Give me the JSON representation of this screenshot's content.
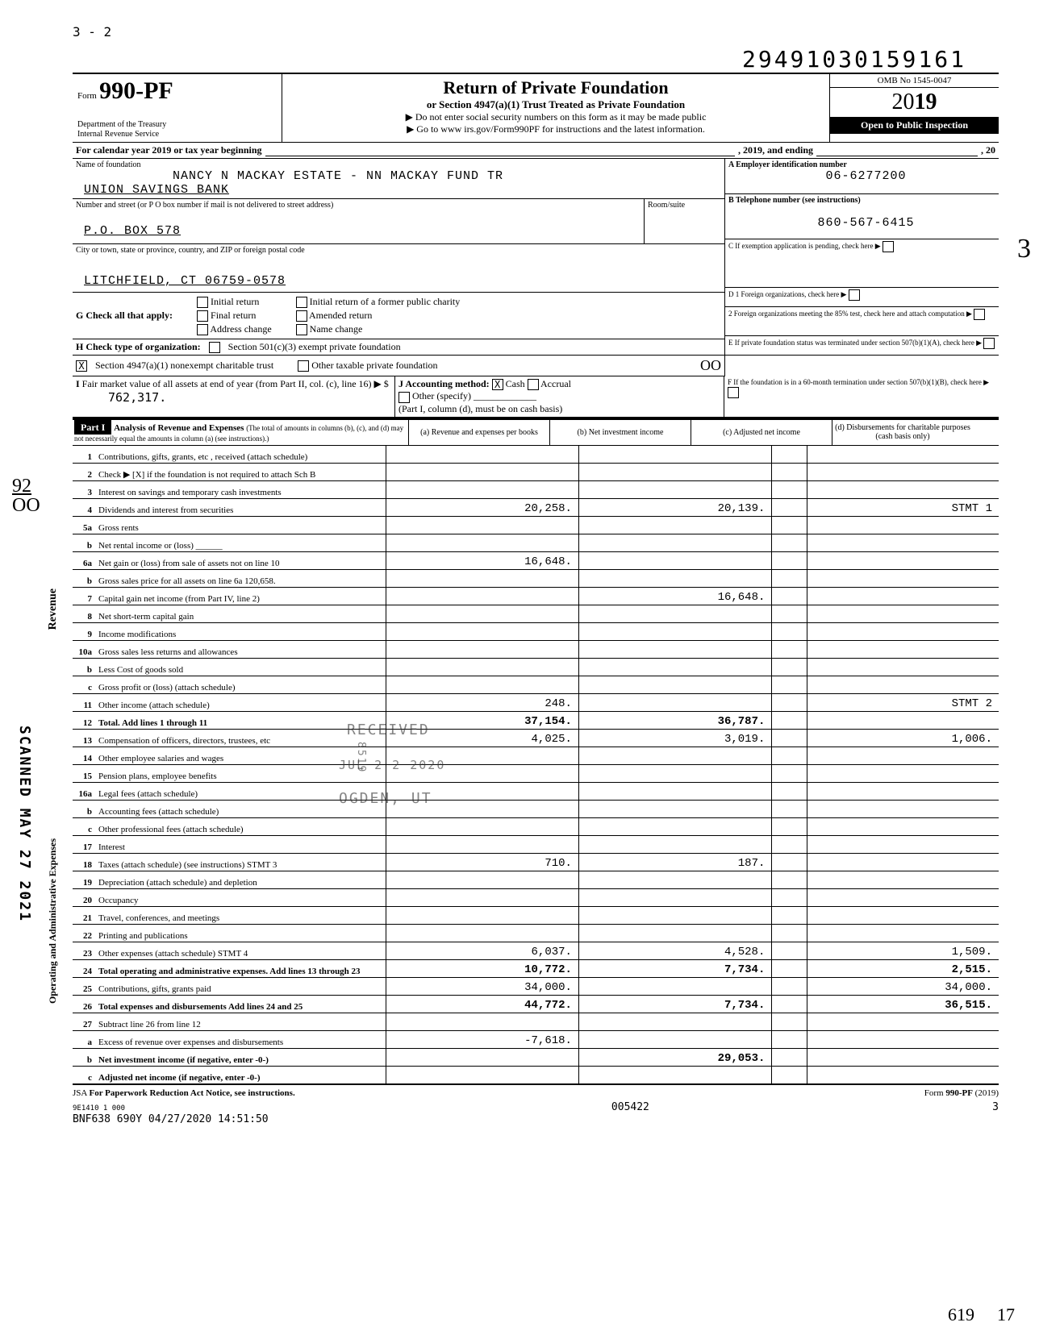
{
  "top_left_mark": "3 - 2",
  "doc_id": "29491030159161",
  "form": {
    "prefix": "Form",
    "number": "990-PF",
    "title": "Return of Private Foundation",
    "subtitle": "or Section 4947(a)(1) Trust Treated as Private Foundation",
    "warn": "▶ Do not enter social security numbers on this form as it may be made public",
    "goto": "▶ Go to www irs.gov/Form990PF for instructions and the latest information.",
    "dept1": "Department of the Treasury",
    "dept2": "Internal Revenue Service",
    "omb": "OMB No 1545-0047",
    "year": "2019",
    "inspect": "Open to Public Inspection"
  },
  "cal_line": "For calendar year 2019 or tax year beginning",
  "cal_mid": ", 2019, and ending",
  "cal_end": ", 20",
  "name_label": "Name of foundation",
  "name_value": "NANCY N MACKAY ESTATE - NN MACKAY FUND TR",
  "name_value2": "UNION SAVINGS BANK",
  "street_label": "Number and street (or P O box number if mail is not delivered to street address)",
  "room_label": "Room/suite",
  "street_value": "P.O. BOX 578",
  "city_label": "City or town, state or province, country, and ZIP or foreign postal code",
  "city_value": "LITCHFIELD, CT 06759-0578",
  "ein_label": "A  Employer identification number",
  "ein_value": "06-6277200",
  "phone_label": "B  Telephone number (see instructions)",
  "phone_value": "860-567-6415",
  "c_label": "C  If exemption application is pending, check here",
  "d1": "D  1 Foreign organizations, check here",
  "d2": "2 Foreign organizations meeting the 85% test, check here and attach computation",
  "e_label": "E  If private foundation status was terminated under section 507(b)(1)(A), check here",
  "f_label": "F  If the foundation is in a 60-month termination under section 507(b)(1)(B), check here",
  "g_label": "G Check all that apply:",
  "g_opts": [
    "Initial return",
    "Final return",
    "Address change",
    "Initial return of a former public charity",
    "Amended return",
    "Name change"
  ],
  "h_label": "H Check type of organization:",
  "h1": "Section 501(c)(3) exempt private foundation",
  "h2": "Section 4947(a)(1) nonexempt charitable trust",
  "h3": "Other taxable private foundation",
  "h_mark": "X",
  "h_oo": "OO",
  "i_label": "I  Fair market value of all assets at end of year (from Part II, col. (c), line 16) ▶ $",
  "i_value": "762,317.",
  "j_label": "J Accounting method:",
  "j_cash": "Cash",
  "j_accrual": "Accrual",
  "j_other": "Other (specify)",
  "j_note": "(Part I, column (d), must be on cash basis)",
  "j_mark": "X",
  "part1_label": "Part I",
  "part1_title": "Analysis of Revenue and Expenses",
  "part1_sub": "(The total of amounts in columns (b), (c), and (d) may not necessarily equal the amounts in column (a) (see instructions).)",
  "col_a": "(a) Revenue and expenses per books",
  "col_b": "(b) Net investment income",
  "col_c": "(c) Adjusted net income",
  "col_d": "(d) Disbursements for charitable purposes (cash basis only)",
  "rows": [
    {
      "n": "1",
      "d": "Contributions, gifts, grants, etc , received (attach schedule)"
    },
    {
      "n": "2",
      "d": "Check ▶  [X]  if the foundation is not required to attach Sch B"
    },
    {
      "n": "3",
      "d": "Interest on savings and temporary cash investments"
    },
    {
      "n": "4",
      "d": "Dividends and interest from securities",
      "a": "20,258.",
      "b": "20,139.",
      "dd": "STMT 1"
    },
    {
      "n": "5a",
      "d": "Gross rents"
    },
    {
      "n": "b",
      "d": "Net rental income or (loss) ______"
    },
    {
      "n": "6a",
      "d": "Net gain or (loss) from sale of assets not on line 10",
      "a": "16,648."
    },
    {
      "n": "b",
      "d": "Gross sales price for all assets on line 6a      120,658."
    },
    {
      "n": "7",
      "d": "Capital gain net income (from Part IV, line 2)",
      "b": "16,648."
    },
    {
      "n": "8",
      "d": "Net short-term capital gain"
    },
    {
      "n": "9",
      "d": "Income modifications"
    },
    {
      "n": "10a",
      "d": "Gross sales less returns and allowances"
    },
    {
      "n": "b",
      "d": "Less Cost of goods sold"
    },
    {
      "n": "c",
      "d": "Gross profit or (loss) (attach schedule)"
    },
    {
      "n": "11",
      "d": "Other income (attach schedule)",
      "a": "248.",
      "dd": "STMT 2"
    },
    {
      "n": "12",
      "d": "Total. Add lines 1 through 11",
      "a": "37,154.",
      "b": "36,787.",
      "bold": true
    },
    {
      "n": "13",
      "d": "Compensation of officers, directors, trustees, etc",
      "a": "4,025.",
      "b": "3,019.",
      "dd": "1,006."
    },
    {
      "n": "14",
      "d": "Other employee salaries and wages"
    },
    {
      "n": "15",
      "d": "Pension plans, employee benefits"
    },
    {
      "n": "16a",
      "d": "Legal fees (attach schedule)"
    },
    {
      "n": "b",
      "d": "Accounting fees (attach schedule)"
    },
    {
      "n": "c",
      "d": "Other professional fees (attach schedule)"
    },
    {
      "n": "17",
      "d": "Interest"
    },
    {
      "n": "18",
      "d": "Taxes (attach schedule) (see instructions) STMT 3",
      "a": "710.",
      "b": "187."
    },
    {
      "n": "19",
      "d": "Depreciation (attach schedule) and depletion"
    },
    {
      "n": "20",
      "d": "Occupancy"
    },
    {
      "n": "21",
      "d": "Travel, conferences, and meetings"
    },
    {
      "n": "22",
      "d": "Printing and publications"
    },
    {
      "n": "23",
      "d": "Other expenses (attach schedule) STMT 4",
      "a": "6,037.",
      "b": "4,528.",
      "dd": "1,509."
    },
    {
      "n": "24",
      "d": "Total operating and administrative expenses. Add lines 13 through 23",
      "a": "10,772.",
      "b": "7,734.",
      "dd": "2,515.",
      "bold": true
    },
    {
      "n": "25",
      "d": "Contributions, gifts, grants paid",
      "a": "34,000.",
      "dd": "34,000."
    },
    {
      "n": "26",
      "d": "Total expenses and disbursements Add lines 24 and 25",
      "a": "44,772.",
      "b": "7,734.",
      "dd": "36,515.",
      "bold": true
    },
    {
      "n": "27",
      "d": "Subtract line 26 from line 12"
    },
    {
      "n": "a",
      "d": "Excess of revenue over expenses and disbursements",
      "a": "-7,618."
    },
    {
      "n": "b",
      "d": "Net investment income (if negative, enter -0-)",
      "b": "29,053.",
      "bold": true
    },
    {
      "n": "c",
      "d": "Adjusted net income (if negative, enter -0-)",
      "bold": true
    }
  ],
  "side_revenue": "Revenue",
  "side_expenses": "Operating and Administrative Expenses",
  "footer_jsa": "JSA",
  "footer_notice": "For Paperwork Reduction Act Notice, see instructions.",
  "footer_code": "9E1410 1 000",
  "footer_line": "BNF638 690Y 04/27/2020 14:51:50",
  "footer_mid": "005422",
  "footer_form": "Form 990-PF (2019)",
  "footer_page": "3",
  "stamp1": "RECEIVED",
  "stamp2": "JUL 2 2 2020",
  "stamp3": "OGDEN, UT",
  "stamp4": "8519",
  "scanned": "SCANNED MAY 27 2021",
  "margin_92": "92",
  "margin_oo": "OO",
  "margin_3": "3",
  "margin_619": "619",
  "margin_17": "17",
  "col_widths": {
    "desc": 388,
    "a": 175,
    "b": 175,
    "c": 175,
    "d": 175
  }
}
